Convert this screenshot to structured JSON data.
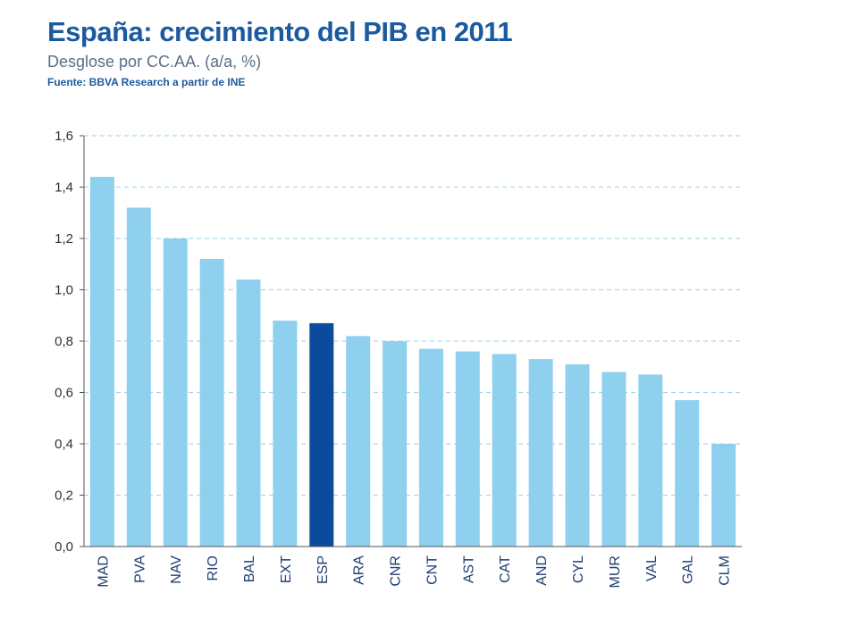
{
  "chart_data": {
    "type": "bar",
    "title": "España: crecimiento del PIB en 2011",
    "subtitle": "Desglose por CC.AA. (a/a, %)",
    "source": "Fuente: BBVA Research a partir de INE",
    "categories": [
      "MAD",
      "PVA",
      "NAV",
      "RIO",
      "BAL",
      "EXT",
      "ESP",
      "ARA",
      "CNR",
      "CNT",
      "AST",
      "CAT",
      "AND",
      "CYL",
      "MUR",
      "VAL",
      "GAL",
      "CLM"
    ],
    "values": [
      1.44,
      1.32,
      1.2,
      1.12,
      1.04,
      0.88,
      0.87,
      0.82,
      0.8,
      0.77,
      0.76,
      0.75,
      0.73,
      0.71,
      0.68,
      0.67,
      0.57,
      0.4
    ],
    "highlight": "ESP",
    "ylim": [
      0,
      1.6
    ],
    "yticks": [
      "0,0",
      "0,2",
      "0,4",
      "0,6",
      "0,8",
      "1,0",
      "1,2",
      "1,4",
      "1,6"
    ],
    "xlabel": "",
    "ylabel": "",
    "grid": "dashed horizontal",
    "colors": {
      "bar": "#8fd0ef",
      "highlight": "#0c4a9c",
      "grid": "#a7d7ee",
      "axis": "#555555"
    }
  }
}
